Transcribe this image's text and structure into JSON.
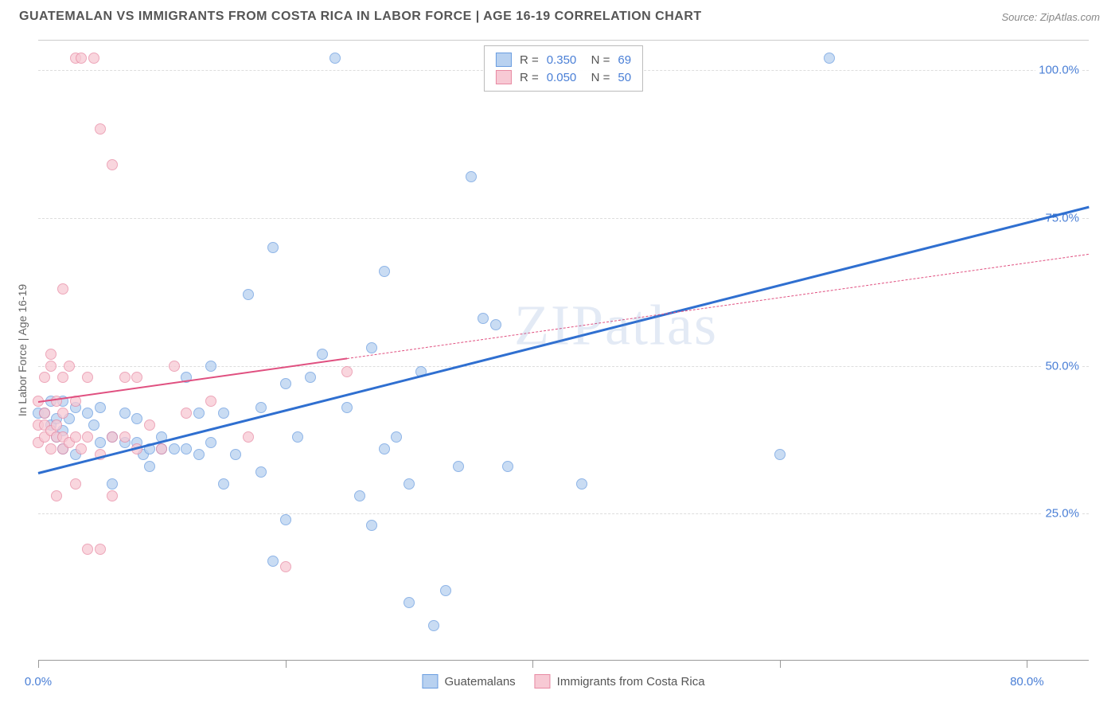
{
  "header": {
    "title": "GUATEMALAN VS IMMIGRANTS FROM COSTA RICA IN LABOR FORCE | AGE 16-19 CORRELATION CHART",
    "source": "Source: ZipAtlas.com"
  },
  "watermark": "ZIPatlas",
  "chart": {
    "type": "scatter",
    "y_axis_label": "In Labor Force | Age 16-19",
    "background_color": "#ffffff",
    "grid_color": "#dddddd",
    "xlim": [
      0,
      85
    ],
    "ylim": [
      0,
      105
    ],
    "x_ticks": [
      {
        "pos": 0,
        "label": "0.0%"
      },
      {
        "pos": 20,
        "label": ""
      },
      {
        "pos": 40,
        "label": ""
      },
      {
        "pos": 60,
        "label": ""
      },
      {
        "pos": 80,
        "label": "80.0%"
      }
    ],
    "y_ticks": [
      {
        "pos": 25,
        "label": "25.0%"
      },
      {
        "pos": 50,
        "label": "50.0%"
      },
      {
        "pos": 75,
        "label": "75.0%"
      },
      {
        "pos": 100,
        "label": "100.0%"
      }
    ],
    "series": [
      {
        "name": "Guatemalans",
        "color_fill": "#b8d1f0",
        "color_stroke": "#6a9de0",
        "marker_size": 14,
        "marker_opacity": 0.75,
        "trend": {
          "x1": 0,
          "y1": 32,
          "x2": 85,
          "y2": 77,
          "solid_until_x": 85,
          "color": "#2f6fd0",
          "width": 3
        },
        "stats": {
          "r": "0.350",
          "n": "69"
        },
        "points": [
          [
            0,
            42
          ],
          [
            0.5,
            42
          ],
          [
            1,
            40
          ],
          [
            1,
            44
          ],
          [
            1.5,
            41
          ],
          [
            1.5,
            38
          ],
          [
            2,
            39
          ],
          [
            2,
            36
          ],
          [
            2,
            44
          ],
          [
            2.5,
            41
          ],
          [
            3,
            43
          ],
          [
            3,
            35
          ],
          [
            4,
            42
          ],
          [
            4.5,
            40
          ],
          [
            5,
            37
          ],
          [
            5,
            43
          ],
          [
            6,
            38
          ],
          [
            6,
            30
          ],
          [
            7,
            37
          ],
          [
            7,
            42
          ],
          [
            8,
            37
          ],
          [
            8,
            41
          ],
          [
            8.5,
            35
          ],
          [
            9,
            36
          ],
          [
            9,
            33
          ],
          [
            10,
            36
          ],
          [
            10,
            38
          ],
          [
            11,
            36
          ],
          [
            12,
            48
          ],
          [
            12,
            36
          ],
          [
            13,
            35
          ],
          [
            13,
            42
          ],
          [
            14,
            37
          ],
          [
            14,
            50
          ],
          [
            15,
            30
          ],
          [
            15,
            42
          ],
          [
            16,
            35
          ],
          [
            17,
            62
          ],
          [
            18,
            43
          ],
          [
            18,
            32
          ],
          [
            19,
            17
          ],
          [
            19,
            70
          ],
          [
            20,
            24
          ],
          [
            20,
            47
          ],
          [
            21,
            38
          ],
          [
            22,
            48
          ],
          [
            23,
            52
          ],
          [
            24,
            102
          ],
          [
            25,
            43
          ],
          [
            26,
            28
          ],
          [
            27,
            53
          ],
          [
            27,
            23
          ],
          [
            28,
            66
          ],
          [
            28,
            36
          ],
          [
            29,
            38
          ],
          [
            30,
            10
          ],
          [
            30,
            30
          ],
          [
            31,
            49
          ],
          [
            32,
            6
          ],
          [
            33,
            12
          ],
          [
            34,
            33
          ],
          [
            35,
            82
          ],
          [
            36,
            58
          ],
          [
            37,
            57
          ],
          [
            38,
            102
          ],
          [
            38,
            33
          ],
          [
            44,
            30
          ],
          [
            60,
            35
          ],
          [
            64,
            102
          ]
        ]
      },
      {
        "name": "Immigrants from Costa Rica",
        "color_fill": "#f7c9d4",
        "color_stroke": "#e88aa3",
        "marker_size": 14,
        "marker_opacity": 0.75,
        "trend": {
          "x1": 0,
          "y1": 44,
          "x2": 85,
          "y2": 69,
          "solid_until_x": 25,
          "color": "#e05080",
          "width": 2.5
        },
        "stats": {
          "r": "0.050",
          "n": "50"
        },
        "points": [
          [
            0,
            40
          ],
          [
            0,
            44
          ],
          [
            0,
            37
          ],
          [
            0.5,
            38
          ],
          [
            0.5,
            40
          ],
          [
            0.5,
            42
          ],
          [
            0.5,
            48
          ],
          [
            1,
            36
          ],
          [
            1,
            39
          ],
          [
            1,
            50
          ],
          [
            1,
            52
          ],
          [
            1.5,
            28
          ],
          [
            1.5,
            38
          ],
          [
            1.5,
            40
          ],
          [
            1.5,
            44
          ],
          [
            2,
            36
          ],
          [
            2,
            38
          ],
          [
            2,
            42
          ],
          [
            2,
            48
          ],
          [
            2,
            63
          ],
          [
            2.5,
            37
          ],
          [
            2.5,
            50
          ],
          [
            3,
            30
          ],
          [
            3,
            38
          ],
          [
            3,
            44
          ],
          [
            3,
            102
          ],
          [
            3.5,
            36
          ],
          [
            3.5,
            102
          ],
          [
            4,
            19
          ],
          [
            4,
            38
          ],
          [
            4,
            48
          ],
          [
            4.5,
            102
          ],
          [
            5,
            35
          ],
          [
            5,
            90
          ],
          [
            5,
            19
          ],
          [
            6,
            28
          ],
          [
            6,
            38
          ],
          [
            6,
            84
          ],
          [
            7,
            38
          ],
          [
            7,
            48
          ],
          [
            8,
            36
          ],
          [
            8,
            48
          ],
          [
            9,
            40
          ],
          [
            10,
            36
          ],
          [
            11,
            50
          ],
          [
            12,
            42
          ],
          [
            14,
            44
          ],
          [
            17,
            38
          ],
          [
            20,
            16
          ],
          [
            25,
            49
          ]
        ]
      }
    ],
    "legend": [
      {
        "swatch_fill": "#b8d1f0",
        "swatch_stroke": "#6a9de0",
        "label": "Guatemalans"
      },
      {
        "swatch_fill": "#f7c9d4",
        "swatch_stroke": "#e88aa3",
        "label": "Immigrants from Costa Rica"
      }
    ],
    "stats_box": {
      "rows": [
        {
          "swatch_fill": "#b8d1f0",
          "swatch_stroke": "#6a9de0",
          "r": "0.350",
          "n": "69"
        },
        {
          "swatch_fill": "#f7c9d4",
          "swatch_stroke": "#e88aa3",
          "r": "0.050",
          "n": "50"
        }
      ]
    }
  }
}
